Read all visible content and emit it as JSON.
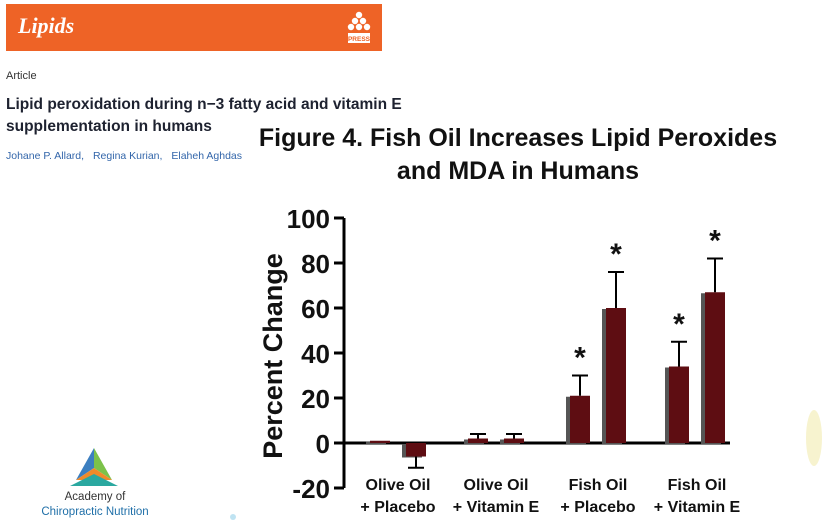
{
  "journal": {
    "name": "Lipids",
    "publisher": "AOCS PRESS",
    "color": "#ee6326"
  },
  "article": {
    "label": "Article",
    "title_line1": "Lipid peroxidation during n−3 fatty acid and vitamin E",
    "title_line2": "supplementation in humans",
    "authors": [
      "Johane P. Allard,",
      "Regina Kurian,",
      "Elaheh Aghdas"
    ]
  },
  "figure": {
    "title_line1": "Figure 4. Fish Oil Increases Lipid Peroxides",
    "title_line2": "and MDA in Humans"
  },
  "chart_data": {
    "type": "bar",
    "ylabel": "Percent  Change",
    "ylim": [
      -20,
      100
    ],
    "yticks": [
      -20,
      0,
      20,
      40,
      60,
      80,
      100
    ],
    "categories": [
      {
        "line1": "Olive Oil",
        "line2": "+ Placebo"
      },
      {
        "line1": "Olive Oil",
        "line2": "+ Vitamin E"
      },
      {
        "line1": "Fish Oil",
        "line2": "+ Placebo"
      },
      {
        "line1": "Fish Oil",
        "line2": " +  Vitamin E"
      }
    ],
    "series": [
      {
        "values": [
          1,
          2,
          21,
          34
        ],
        "errors": [
          0,
          2,
          9,
          11
        ],
        "significant": [
          false,
          false,
          true,
          true
        ]
      },
      {
        "values": [
          -6,
          2,
          60,
          67
        ],
        "errors": [
          5,
          2,
          16,
          15
        ],
        "significant": [
          false,
          false,
          true,
          true
        ]
      }
    ],
    "significance_marker": "*",
    "colors": {
      "bar": "#5e0d12",
      "bar_shadow": "#555555"
    }
  },
  "footer": {
    "line1": "Academy of",
    "line2": "Chiropractic Nutrition"
  }
}
